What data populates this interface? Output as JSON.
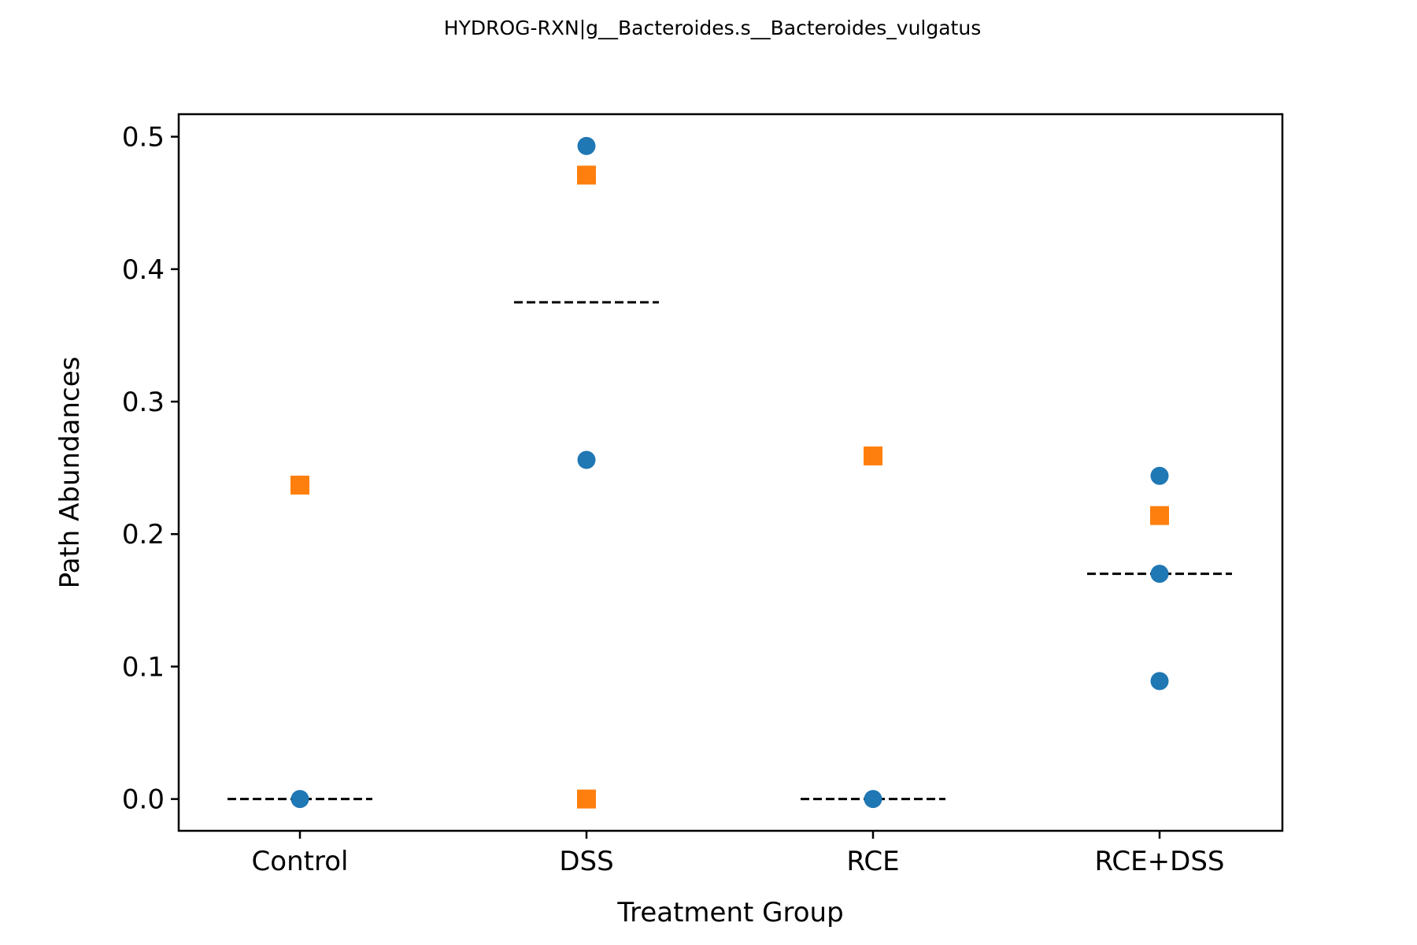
{
  "chart_data": {
    "type": "scatter",
    "title": "HYDROG-RXN|g__Bacteroides.s__Bacteroides_vulgatus",
    "xlabel": "Treatment Group",
    "ylabel": "Path Abundances",
    "categories": [
      "Control",
      "DSS",
      "RCE",
      "RCE+DSS"
    ],
    "ylim": [
      -0.024,
      0.517
    ],
    "yticks": [
      0.0,
      0.1,
      0.2,
      0.3,
      0.4,
      0.5
    ],
    "ytick_labels": [
      "0.0",
      "0.1",
      "0.2",
      "0.3",
      "0.4",
      "0.5"
    ],
    "grid": false,
    "series": [
      {
        "marker": "circle",
        "color": "#1f77b4",
        "points": [
          {
            "category": "Control",
            "y": 0.0
          },
          {
            "category": "DSS",
            "y": 0.493
          },
          {
            "category": "DSS",
            "y": 0.256
          },
          {
            "category": "RCE",
            "y": 0.0
          },
          {
            "category": "RCE+DSS",
            "y": 0.244
          },
          {
            "category": "RCE+DSS",
            "y": 0.17
          },
          {
            "category": "RCE+DSS",
            "y": 0.089
          }
        ]
      },
      {
        "marker": "square",
        "color": "#ff7f0e",
        "points": [
          {
            "category": "Control",
            "y": 0.237
          },
          {
            "category": "DSS",
            "y": 0.471
          },
          {
            "category": "DSS",
            "y": 0.0
          },
          {
            "category": "RCE",
            "y": 0.259
          },
          {
            "category": "RCE+DSS",
            "y": 0.214
          }
        ]
      }
    ],
    "median_lines": [
      {
        "category": "Control",
        "y": 0.0
      },
      {
        "category": "DSS",
        "y": 0.375
      },
      {
        "category": "RCE",
        "y": 0.0
      },
      {
        "category": "RCE+DSS",
        "y": 0.17
      }
    ]
  }
}
